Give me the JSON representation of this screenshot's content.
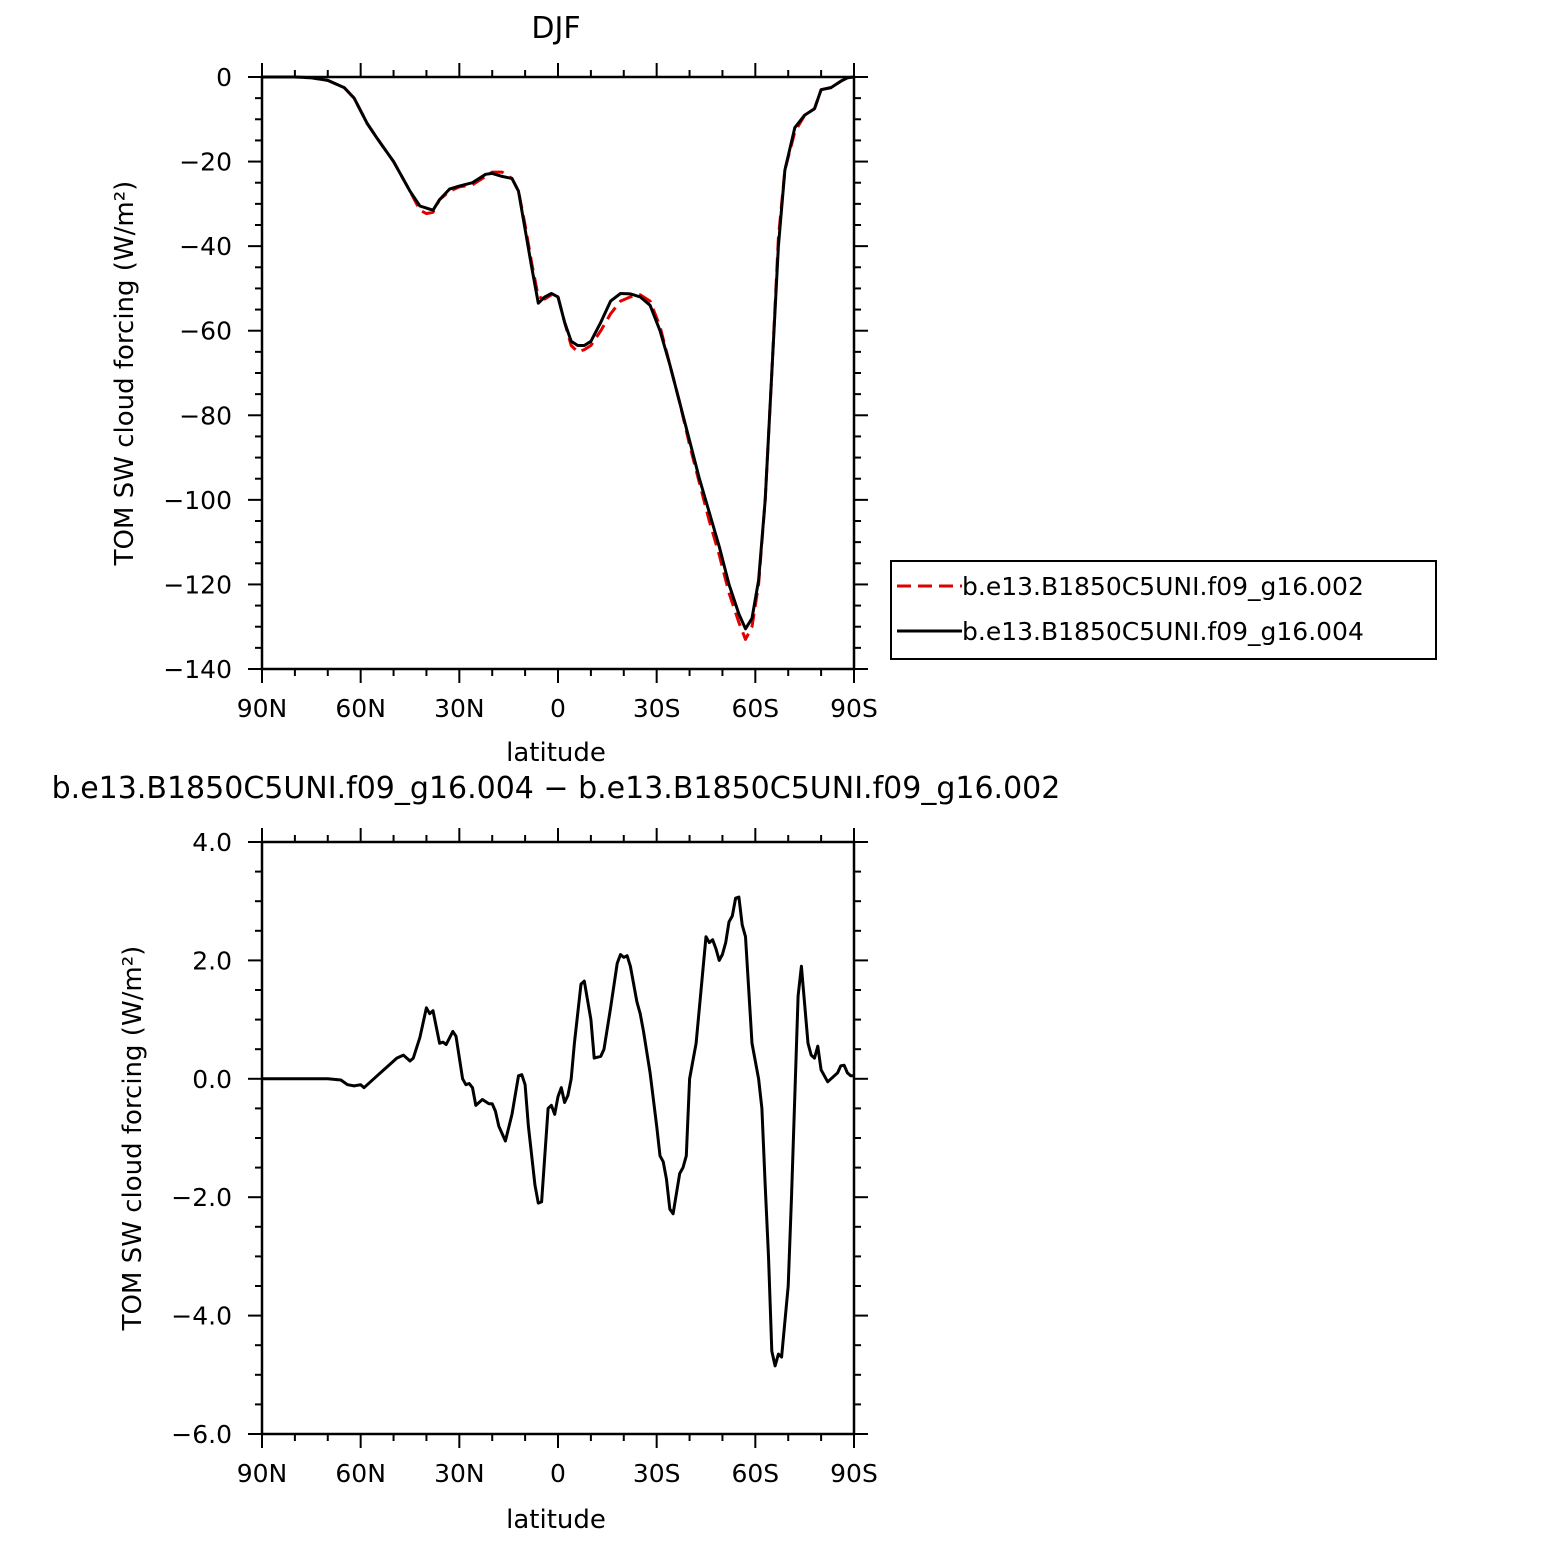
{
  "colors": {
    "exp_a": "#e00000",
    "exp_b": "#000000"
  },
  "chart_data": [
    {
      "type": "line",
      "title": "DJF",
      "xlabel": "latitude",
      "ylabel": "TOM SW cloud forcing (W/m²)",
      "xlim": [
        90,
        -90
      ],
      "ylim": [
        -140,
        0
      ],
      "xticks": [
        90,
        60,
        30,
        0,
        -30,
        -60,
        -90
      ],
      "xtick_labels": [
        "90N",
        "60N",
        "30N",
        "0",
        "30S",
        "60S",
        "90S"
      ],
      "yticks": [
        0,
        -20,
        -40,
        -60,
        -80,
        -100,
        -120,
        -140
      ],
      "ytick_labels": [
        "0",
        "−20",
        "−40",
        "−60",
        "−80",
        "−100",
        "−120",
        "−140"
      ],
      "legend": {
        "placement": "right"
      },
      "series": [
        {
          "name": "b.e13.B1850C5UNI.f09_g16.002",
          "style": "dashed",
          "color": "#e00000",
          "points": [
            [
              90,
              0
            ],
            [
              80,
              0
            ],
            [
              75,
              -0.2
            ],
            [
              70,
              -0.8
            ],
            [
              65,
              -2.5
            ],
            [
              62,
              -5
            ],
            [
              58,
              -11
            ],
            [
              55,
              -14.5
            ],
            [
              50,
              -20
            ],
            [
              45,
              -27
            ],
            [
              42,
              -31.5
            ],
            [
              40,
              -32.3
            ],
            [
              38,
              -32
            ],
            [
              36,
              -29
            ],
            [
              33,
              -27
            ],
            [
              30,
              -26
            ],
            [
              26,
              -25.5
            ],
            [
              22,
              -23.5
            ],
            [
              20,
              -22.5
            ],
            [
              17,
              -22.5
            ],
            [
              14,
              -24
            ],
            [
              12,
              -27
            ],
            [
              10,
              -35
            ],
            [
              8,
              -44
            ],
            [
              6,
              -52
            ],
            [
              4,
              -52.5
            ],
            [
              2,
              -51.5
            ],
            [
              0,
              -52
            ],
            [
              -2,
              -58
            ],
            [
              -4,
              -63.5
            ],
            [
              -6,
              -65
            ],
            [
              -8,
              -64.5
            ],
            [
              -10,
              -63.5
            ],
            [
              -13,
              -60
            ],
            [
              -16,
              -56
            ],
            [
              -19,
              -53
            ],
            [
              -22,
              -52
            ],
            [
              -25,
              -51.5
            ],
            [
              -28,
              -53
            ],
            [
              -31,
              -59
            ],
            [
              -34,
              -68
            ],
            [
              -37,
              -77
            ],
            [
              -40,
              -87
            ],
            [
              -43,
              -96
            ],
            [
              -46,
              -105
            ],
            [
              -49,
              -113
            ],
            [
              -52,
              -122
            ],
            [
              -55,
              -129
            ],
            [
              -57,
              -133
            ],
            [
              -59,
              -130
            ],
            [
              -61,
              -120
            ],
            [
              -63,
              -100
            ],
            [
              -65,
              -70
            ],
            [
              -67,
              -38
            ],
            [
              -69,
              -22
            ],
            [
              -72,
              -13
            ],
            [
              -75,
              -9
            ],
            [
              -78,
              -7.5
            ],
            [
              -80,
              -3
            ],
            [
              -83,
              -2.5
            ],
            [
              -86,
              -1
            ],
            [
              -88,
              -0.2
            ],
            [
              -90,
              0
            ]
          ]
        },
        {
          "name": "b.e13.B1850C5UNI.f09_g16.004",
          "style": "solid",
          "color": "#000000",
          "points": [
            [
              90,
              0
            ],
            [
              80,
              0
            ],
            [
              75,
              -0.2
            ],
            [
              70,
              -0.8
            ],
            [
              65,
              -2.5
            ],
            [
              62,
              -5
            ],
            [
              58,
              -11
            ],
            [
              55,
              -14.5
            ],
            [
              50,
              -20
            ],
            [
              45,
              -27
            ],
            [
              42,
              -30.5
            ],
            [
              40,
              -31
            ],
            [
              38,
              -31.5
            ],
            [
              36,
              -29
            ],
            [
              33,
              -26.5
            ],
            [
              30,
              -25.8
            ],
            [
              26,
              -25
            ],
            [
              22,
              -23
            ],
            [
              20,
              -22.8
            ],
            [
              17,
              -23.5
            ],
            [
              14,
              -24
            ],
            [
              12,
              -27
            ],
            [
              10,
              -36
            ],
            [
              8,
              -45
            ],
            [
              6,
              -53.5
            ],
            [
              4,
              -52
            ],
            [
              2,
              -51.2
            ],
            [
              0,
              -52
            ],
            [
              -2,
              -58
            ],
            [
              -4,
              -62.5
            ],
            [
              -6,
              -63.5
            ],
            [
              -8,
              -63.5
            ],
            [
              -10,
              -62.5
            ],
            [
              -13,
              -58
            ],
            [
              -16,
              -53
            ],
            [
              -19,
              -51.2
            ],
            [
              -22,
              -51.3
            ],
            [
              -25,
              -52
            ],
            [
              -28,
              -54
            ],
            [
              -31,
              -60
            ],
            [
              -34,
              -68
            ],
            [
              -37,
              -77
            ],
            [
              -40,
              -86
            ],
            [
              -43,
              -95
            ],
            [
              -46,
              -103
            ],
            [
              -49,
              -111
            ],
            [
              -52,
              -120
            ],
            [
              -55,
              -127
            ],
            [
              -57,
              -130.5
            ],
            [
              -59,
              -128
            ],
            [
              -61,
              -119
            ],
            [
              -63,
              -100
            ],
            [
              -65,
              -70
            ],
            [
              -67,
              -40
            ],
            [
              -69,
              -22
            ],
            [
              -72,
              -12
            ],
            [
              -75,
              -9
            ],
            [
              -78,
              -7.5
            ],
            [
              -80,
              -3
            ],
            [
              -83,
              -2.5
            ],
            [
              -86,
              -1
            ],
            [
              -88,
              -0.2
            ],
            [
              -90,
              0
            ]
          ]
        }
      ]
    },
    {
      "type": "line",
      "title": "b.e13.B1850C5UNI.f09_g16.004 − b.e13.B1850C5UNI.f09_g16.002",
      "xlabel": "latitude",
      "ylabel": "TOM SW cloud forcing (W/m²)",
      "xlim": [
        90,
        -90
      ],
      "ylim": [
        -6,
        4
      ],
      "xticks": [
        90,
        60,
        30,
        0,
        -30,
        -60,
        -90
      ],
      "xtick_labels": [
        "90N",
        "60N",
        "30N",
        "0",
        "30S",
        "60S",
        "90S"
      ],
      "yticks": [
        4,
        2,
        0,
        -2,
        -4,
        -6
      ],
      "ytick_labels": [
        "4.0",
        "2.0",
        "0.0",
        "−2.0",
        "−4.0",
        "−6.0"
      ],
      "series": [
        {
          "style": "solid",
          "color": "#000000",
          "points": [
            [
              90,
              0
            ],
            [
              70,
              0
            ],
            [
              66,
              -0.02
            ],
            [
              64,
              -0.1
            ],
            [
              62,
              -0.12
            ],
            [
              60,
              -0.1
            ],
            [
              59,
              -0.15
            ],
            [
              57,
              -0.05
            ],
            [
              55,
              0.05
            ],
            [
              53,
              0.15
            ],
            [
              51,
              0.25
            ],
            [
              49,
              0.35
            ],
            [
              47,
              0.4
            ],
            [
              45,
              0.3
            ],
            [
              44,
              0.35
            ],
            [
              42,
              0.7
            ],
            [
              40,
              1.2
            ],
            [
              39,
              1.1
            ],
            [
              38,
              1.15
            ],
            [
              36,
              0.6
            ],
            [
              35,
              0.62
            ],
            [
              34,
              0.58
            ],
            [
              32,
              0.8
            ],
            [
              31,
              0.72
            ],
            [
              29,
              0
            ],
            [
              28,
              -0.1
            ],
            [
              27,
              -0.08
            ],
            [
              26,
              -0.15
            ],
            [
              25,
              -0.45
            ],
            [
              23,
              -0.35
            ],
            [
              21,
              -0.42
            ],
            [
              20,
              -0.42
            ],
            [
              19,
              -0.55
            ],
            [
              18,
              -0.8
            ],
            [
              16,
              -1.05
            ],
            [
              14,
              -0.6
            ],
            [
              12,
              0.05
            ],
            [
              11,
              0.07
            ],
            [
              10,
              -0.1
            ],
            [
              9,
              -0.8
            ],
            [
              7,
              -1.8
            ],
            [
              6,
              -2.1
            ],
            [
              5,
              -2.08
            ],
            [
              3,
              -0.5
            ],
            [
              2,
              -0.45
            ],
            [
              1,
              -0.6
            ],
            [
              0,
              -0.3
            ],
            [
              -1,
              -0.15
            ],
            [
              -2,
              -0.4
            ],
            [
              -3,
              -0.28
            ],
            [
              -4,
              0
            ],
            [
              -5,
              0.6
            ],
            [
              -7,
              1.6
            ],
            [
              -8,
              1.65
            ],
            [
              -10,
              1.0
            ],
            [
              -11,
              0.35
            ],
            [
              -13,
              0.38
            ],
            [
              -14,
              0.5
            ],
            [
              -16,
              1.2
            ],
            [
              -18,
              1.95
            ],
            [
              -19,
              2.1
            ],
            [
              -20,
              2.05
            ],
            [
              -21,
              2.08
            ],
            [
              -22,
              1.9
            ],
            [
              -24,
              1.3
            ],
            [
              -25,
              1.1
            ],
            [
              -26,
              0.8
            ],
            [
              -28,
              0.1
            ],
            [
              -30,
              -0.8
            ],
            [
              -31,
              -1.3
            ],
            [
              -32,
              -1.4
            ],
            [
              -33,
              -1.7
            ],
            [
              -34,
              -2.2
            ],
            [
              -35,
              -2.28
            ],
            [
              -37,
              -1.6
            ],
            [
              -38,
              -1.5
            ],
            [
              -39,
              -1.3
            ],
            [
              -40,
              0
            ],
            [
              -42,
              0.6
            ],
            [
              -44,
              1.8
            ],
            [
              -45,
              2.4
            ],
            [
              -46,
              2.3
            ],
            [
              -47,
              2.35
            ],
            [
              -48,
              2.2
            ],
            [
              -49,
              2.0
            ],
            [
              -50,
              2.1
            ],
            [
              -51,
              2.3
            ],
            [
              -52,
              2.65
            ],
            [
              -53,
              2.75
            ],
            [
              -54,
              3.05
            ],
            [
              -55,
              3.07
            ],
            [
              -56,
              2.6
            ],
            [
              -57,
              2.4
            ],
            [
              -59,
              0.6
            ],
            [
              -61,
              0
            ],
            [
              -62,
              -0.5
            ],
            [
              -63,
              -1.8
            ],
            [
              -64,
              -3
            ],
            [
              -65,
              -4.6
            ],
            [
              -66,
              -4.85
            ],
            [
              -67,
              -4.65
            ],
            [
              -68,
              -4.7
            ],
            [
              -70,
              -3.5
            ],
            [
              -71,
              -2.0
            ],
            [
              -73,
              1.4
            ],
            [
              -74,
              1.9
            ],
            [
              -76,
              0.6
            ],
            [
              -77,
              0.4
            ],
            [
              -78,
              0.35
            ],
            [
              -79,
              0.55
            ],
            [
              -80,
              0.15
            ],
            [
              -82,
              -0.05
            ],
            [
              -84,
              0.05
            ],
            [
              -85,
              0.1
            ],
            [
              -86,
              0.22
            ],
            [
              -87,
              0.23
            ],
            [
              -88,
              0.1
            ],
            [
              -89,
              0.05
            ],
            [
              -90,
              0.05
            ]
          ]
        }
      ]
    }
  ]
}
